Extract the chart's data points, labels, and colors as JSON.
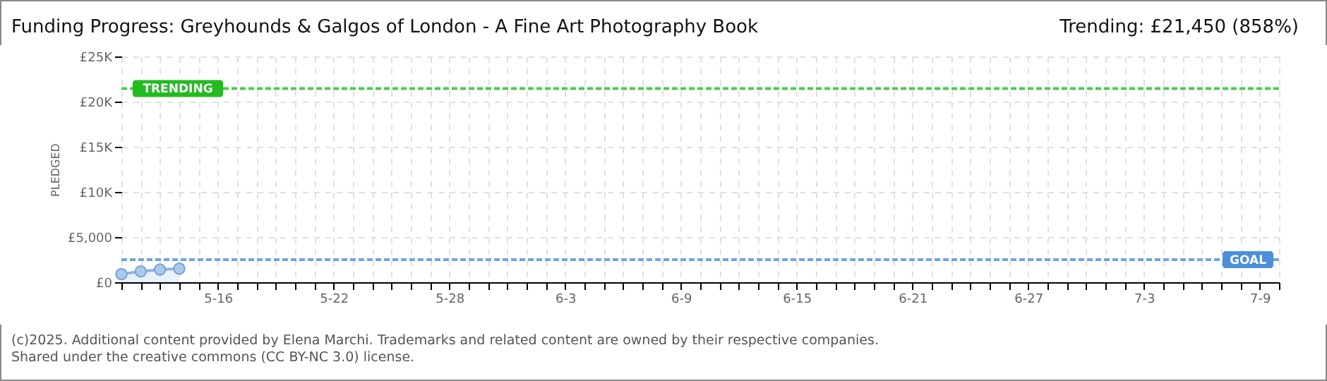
{
  "chart_data": {
    "type": "area",
    "title": "Funding Progress: Greyhounds & Galgos of London - A Fine Art Photography Book",
    "subtitle": "Trending:  £21,450 (858%)",
    "ylabel": "PLEDGED",
    "x": [
      "--05-11",
      "--05-12",
      "--05-13",
      "--05-14"
    ],
    "series": [
      {
        "color": "#a9c9ee",
        "values": [
          900,
          1200,
          1400,
          1500
        ]
      }
    ],
    "marker": "circle",
    "line_style": "solid",
    "grid": true,
    "xlim": [
      "--05-11",
      "--07-10"
    ],
    "xticks": [
      {
        "value": "--05-11",
        "label": null
      },
      {
        "value": "--05-12",
        "label": null
      },
      {
        "value": "--05-13",
        "label": null
      },
      {
        "value": "--05-14",
        "label": null
      },
      {
        "value": "--05-15",
        "label": null
      },
      {
        "value": "--05-16",
        "label": "5-16"
      },
      {
        "value": "--05-17",
        "label": null
      },
      {
        "value": "--05-18",
        "label": null
      },
      {
        "value": "--05-19",
        "label": null
      },
      {
        "value": "--05-20",
        "label": null
      },
      {
        "value": "--05-21",
        "label": null
      },
      {
        "value": "--05-22",
        "label": "5-22"
      },
      {
        "value": "--05-23",
        "label": null
      },
      {
        "value": "--05-24",
        "label": null
      },
      {
        "value": "--05-25",
        "label": null
      },
      {
        "value": "--05-26",
        "label": null
      },
      {
        "value": "--05-27",
        "label": null
      },
      {
        "value": "--05-28",
        "label": "5-28"
      },
      {
        "value": "--05-29",
        "label": null
      },
      {
        "value": "--05-30",
        "label": null
      },
      {
        "value": "--05-31",
        "label": null
      },
      {
        "value": "--06-01",
        "label": null
      },
      {
        "value": "--06-02",
        "label": null
      },
      {
        "value": "--06-03",
        "label": "6-3"
      },
      {
        "value": "--06-04",
        "label": null
      },
      {
        "value": "--06-05",
        "label": null
      },
      {
        "value": "--06-06",
        "label": null
      },
      {
        "value": "--06-07",
        "label": null
      },
      {
        "value": "--06-08",
        "label": null
      },
      {
        "value": "--06-09",
        "label": "6-9"
      },
      {
        "value": "--06-10",
        "label": null
      },
      {
        "value": "--06-11",
        "label": null
      },
      {
        "value": "--06-12",
        "label": null
      },
      {
        "value": "--06-13",
        "label": null
      },
      {
        "value": "--06-14",
        "label": null
      },
      {
        "value": "--06-15",
        "label": "6-15"
      },
      {
        "value": "--06-16",
        "label": null
      },
      {
        "value": "--06-17",
        "label": null
      },
      {
        "value": "--06-18",
        "label": null
      },
      {
        "value": "--06-19",
        "label": null
      },
      {
        "value": "--06-20",
        "label": null
      },
      {
        "value": "--06-21",
        "label": "6-21"
      },
      {
        "value": "--06-22",
        "label": null
      },
      {
        "value": "--06-23",
        "label": null
      },
      {
        "value": "--06-24",
        "label": null
      },
      {
        "value": "--06-25",
        "label": null
      },
      {
        "value": "--06-26",
        "label": null
      },
      {
        "value": "--06-27",
        "label": "6-27"
      },
      {
        "value": "--06-28",
        "label": null
      },
      {
        "value": "--06-29",
        "label": null
      },
      {
        "value": "--06-30",
        "label": null
      },
      {
        "value": "--07-01",
        "label": null
      },
      {
        "value": "--07-02",
        "label": null
      },
      {
        "value": "--07-03",
        "label": "7-3"
      },
      {
        "value": "--07-04",
        "label": null
      },
      {
        "value": "--07-05",
        "label": null
      },
      {
        "value": "--07-06",
        "label": null
      },
      {
        "value": "--07-07",
        "label": null
      },
      {
        "value": "--07-08",
        "label": null
      },
      {
        "value": "--07-09",
        "label": "7-9"
      },
      {
        "value": "--07-10",
        "label": null
      }
    ],
    "ylim": [
      0,
      25000
    ],
    "yticks": [
      {
        "value": 0,
        "label": "£0"
      },
      {
        "value": 5000,
        "label": "£5,000"
      },
      {
        "value": 10000,
        "label": "£10K"
      },
      {
        "value": 15000,
        "label": "£15K"
      },
      {
        "value": 20000,
        "label": "£20K"
      },
      {
        "value": 25000,
        "label": "£25K"
      }
    ],
    "ref_lines": [
      {
        "axis": "y",
        "value": 21450,
        "label": "TRENDING",
        "color": "#22bb22",
        "line_style": "dashed"
      },
      {
        "axis": "y",
        "value": 2500,
        "label": "GOAL",
        "color": "#4a8fd8",
        "line_style": "dashed"
      }
    ],
    "annotations": [
      "(c)2025. Additional content provided by Elena Marchi. Trademarks and related content are owned by their respective companies.",
      "Shared under the creative commons (CC BY-NC 3.0) license."
    ]
  }
}
